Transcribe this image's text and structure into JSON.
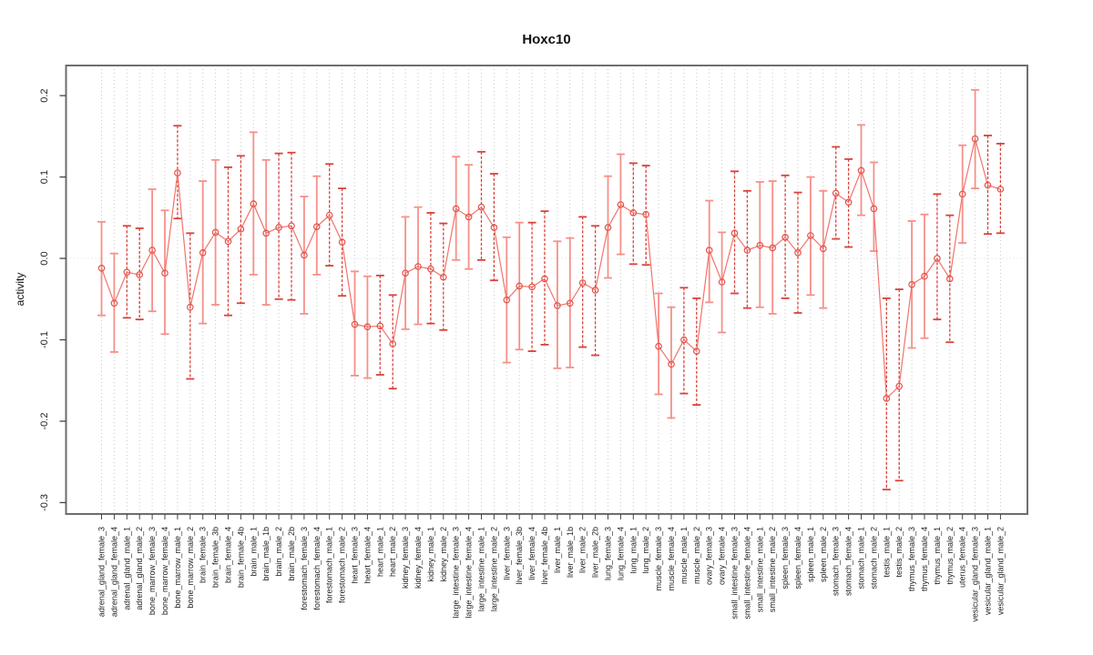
{
  "title": "Hoxc10",
  "chart_data": {
    "type": "scatter",
    "subtype": "point-estimates-with-error-bars-connected-line",
    "title": "Hoxc10",
    "xlabel": "",
    "ylabel": "activity",
    "ylim": [
      -0.314,
      0.237
    ],
    "ytick_values": [
      0.2,
      0.1,
      0.0,
      -0.1,
      -0.2,
      -0.3
    ],
    "ytick_labels": [
      "0.2",
      "0.1",
      "0.0",
      "-0.1",
      "-0.2",
      "-0.3"
    ],
    "grid": "vertical dotted gridline at every sample; dotted horizontal line at y=0",
    "legend_position": "none",
    "colors": {
      "point": "#e2524b",
      "line": "#f2736b",
      "error_bar_solid": "#f59089",
      "error_bar_dashed": "#d9423a",
      "gridline": "#c9c9c9",
      "box": "#6e6e6e"
    },
    "categories": [
      "adrenal_gland_female_3",
      "adrenal_gland_female_4",
      "adrenal_gland_male_1",
      "adrenal_gland_male_2",
      "bone_marrow_female_3",
      "bone_marrow_female_4",
      "bone_marrow_male_1",
      "bone_marrow_male_2",
      "brain_female_3",
      "brain_female_3b",
      "brain_female_4",
      "brain_female_4b",
      "brain_male_1",
      "brain_male_1b",
      "brain_male_2",
      "brain_male_2b",
      "forestomach_female_3",
      "forestomach_female_4",
      "forestomach_male_1",
      "forestomach_male_2",
      "heart_female_3",
      "heart_female_4",
      "heart_male_1",
      "heart_male_2",
      "kidney_female_3",
      "kidney_female_4",
      "kidney_male_1",
      "kidney_male_2",
      "large_intestine_female_3",
      "large_intestine_female_4",
      "large_intestine_male_1",
      "large_intestine_male_2",
      "liver_female_3",
      "liver_female_3b",
      "liver_female_4",
      "liver_female_4b",
      "liver_male_1",
      "liver_male_1b",
      "liver_male_2",
      "liver_male_2b",
      "lung_female_3",
      "lung_female_4",
      "lung_male_1",
      "lung_male_2",
      "muscle_female_3",
      "muscle_female_4",
      "muscle_male_1",
      "muscle_male_2",
      "ovary_female_3",
      "ovary_female_4",
      "small_intestine_female_3",
      "small_intestine_female_4",
      "small_intestine_male_1",
      "small_intestine_male_2",
      "spleen_female_3",
      "spleen_female_4",
      "spleen_male_1",
      "spleen_male_2",
      "stomach_female_3",
      "stomach_female_4",
      "stomach_male_1",
      "stomach_male_2",
      "testis_male_1",
      "testis_male_2",
      "thymus_female_3",
      "thymus_female_4",
      "thymus_male_1",
      "thymus_male_2",
      "uterus_female_4",
      "vesicular_gland_female_3",
      "vesicular_gland_male_1",
      "vesicular_gland_male_2"
    ],
    "series": [
      {
        "name": "activity",
        "mean": [
          -0.012,
          -0.055,
          -0.017,
          -0.02,
          0.01,
          -0.018,
          0.105,
          -0.06,
          0.007,
          0.032,
          0.021,
          0.036,
          0.067,
          0.031,
          0.038,
          0.04,
          0.004,
          0.039,
          0.053,
          0.02,
          -0.081,
          -0.084,
          -0.083,
          -0.105,
          -0.018,
          -0.01,
          -0.013,
          -0.023,
          0.061,
          0.051,
          0.063,
          0.038,
          -0.051,
          -0.034,
          -0.035,
          -0.025,
          -0.058,
          -0.055,
          -0.03,
          -0.039,
          0.038,
          0.066,
          0.056,
          0.054,
          -0.108,
          -0.13,
          -0.1,
          -0.114,
          0.01,
          -0.029,
          0.031,
          0.01,
          0.016,
          0.013,
          0.026,
          0.007,
          0.028,
          0.012,
          0.08,
          0.069,
          0.108,
          0.061,
          -0.172,
          -0.157,
          -0.032,
          -0.022,
          0.0,
          -0.025,
          0.079,
          0.147,
          0.09,
          0.085
        ],
        "ci_low": [
          -0.07,
          -0.115,
          -0.073,
          -0.075,
          -0.065,
          -0.093,
          0.049,
          -0.148,
          -0.08,
          -0.057,
          -0.07,
          -0.055,
          -0.02,
          -0.057,
          -0.05,
          -0.051,
          -0.068,
          -0.02,
          -0.009,
          -0.046,
          -0.144,
          -0.147,
          -0.143,
          -0.16,
          -0.087,
          -0.081,
          -0.08,
          -0.088,
          -0.002,
          -0.013,
          -0.002,
          -0.027,
          -0.128,
          -0.112,
          -0.114,
          -0.106,
          -0.135,
          -0.134,
          -0.109,
          -0.119,
          -0.024,
          0.005,
          -0.007,
          -0.008,
          -0.167,
          -0.196,
          -0.166,
          -0.18,
          -0.054,
          -0.091,
          -0.043,
          -0.061,
          -0.06,
          -0.068,
          -0.049,
          -0.067,
          -0.045,
          -0.061,
          0.024,
          0.014,
          0.053,
          0.009,
          -0.284,
          -0.273,
          -0.11,
          -0.098,
          -0.075,
          -0.103,
          0.019,
          0.086,
          0.03,
          0.031
        ],
        "ci_high": [
          0.045,
          0.006,
          0.04,
          0.037,
          0.085,
          0.059,
          0.163,
          0.031,
          0.095,
          0.121,
          0.112,
          0.126,
          0.155,
          0.121,
          0.129,
          0.13,
          0.076,
          0.101,
          0.116,
          0.086,
          -0.016,
          -0.022,
          -0.021,
          -0.045,
          0.051,
          0.063,
          0.056,
          0.043,
          0.125,
          0.115,
          0.131,
          0.104,
          0.026,
          0.044,
          0.044,
          0.058,
          0.021,
          0.025,
          0.051,
          0.04,
          0.101,
          0.128,
          0.117,
          0.114,
          -0.043,
          -0.06,
          -0.036,
          -0.049,
          0.071,
          0.032,
          0.107,
          0.083,
          0.094,
          0.095,
          0.102,
          0.081,
          0.1,
          0.083,
          0.137,
          0.122,
          0.164,
          0.118,
          -0.049,
          -0.038,
          0.046,
          0.054,
          0.079,
          0.053,
          0.139,
          0.207,
          0.151,
          0.141
        ]
      }
    ]
  }
}
